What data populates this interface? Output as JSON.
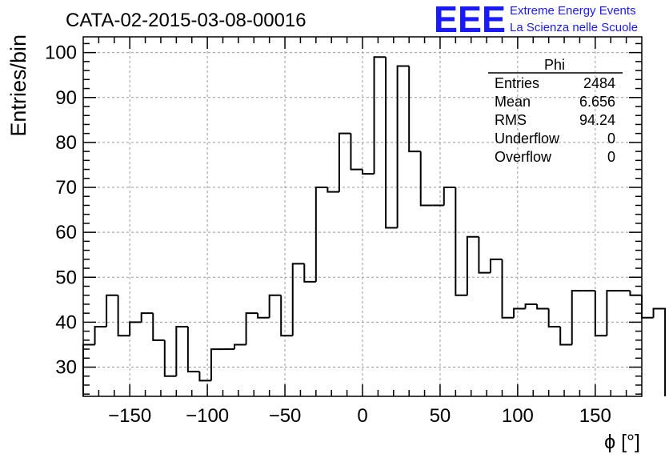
{
  "header": {
    "run_title": "CATA-02-2015-03-08-00016",
    "logo_text": "EEE",
    "logo_line1": "Extreme Energy Events",
    "logo_line2": "La Scienza nelle Scuole",
    "logo_color": "#1a1aff"
  },
  "stats_box": {
    "name": "Phi",
    "rows": [
      {
        "label": "Entries",
        "value": "2484"
      },
      {
        "label": "Mean",
        "value": "6.656"
      },
      {
        "label": "RMS",
        "value": "94.24"
      },
      {
        "label": "Underflow",
        "value": "0"
      },
      {
        "label": "Overflow",
        "value": "0"
      }
    ]
  },
  "chart_data": {
    "type": "bar",
    "style": "step-histogram",
    "title": "CATA-02-2015-03-08-00016",
    "xlabel": "ϕ [°]",
    "ylabel": "Entries/bin",
    "xlim": [
      -180,
      180
    ],
    "ylim": [
      23.5,
      103.5
    ],
    "bin_width": 7.5,
    "bin_edges_start": -180,
    "values": [
      35,
      39,
      46,
      37,
      40,
      42,
      36,
      28,
      39,
      29,
      27,
      34,
      34,
      35,
      42,
      41,
      46,
      37,
      53,
      49,
      70,
      69,
      82,
      74,
      73,
      99,
      61,
      97,
      78,
      66,
      66,
      70,
      46,
      59,
      51,
      54,
      41,
      43,
      44,
      43,
      39,
      35,
      47,
      47,
      37,
      47,
      47,
      46,
      41,
      43
    ],
    "x_ticks": [
      -150,
      -100,
      -50,
      0,
      50,
      100,
      150
    ],
    "x_tick_labels": [
      "−150",
      "−100",
      "−50",
      "0",
      "50",
      "100",
      "150"
    ],
    "y_ticks": [
      30,
      40,
      50,
      60,
      70,
      80,
      90,
      100
    ],
    "y_tick_labels": [
      "30",
      "40",
      "50",
      "60",
      "70",
      "80",
      "90",
      "100"
    ],
    "grid": true,
    "line_color": "#000000",
    "grid_color": "#9a9a9a"
  }
}
